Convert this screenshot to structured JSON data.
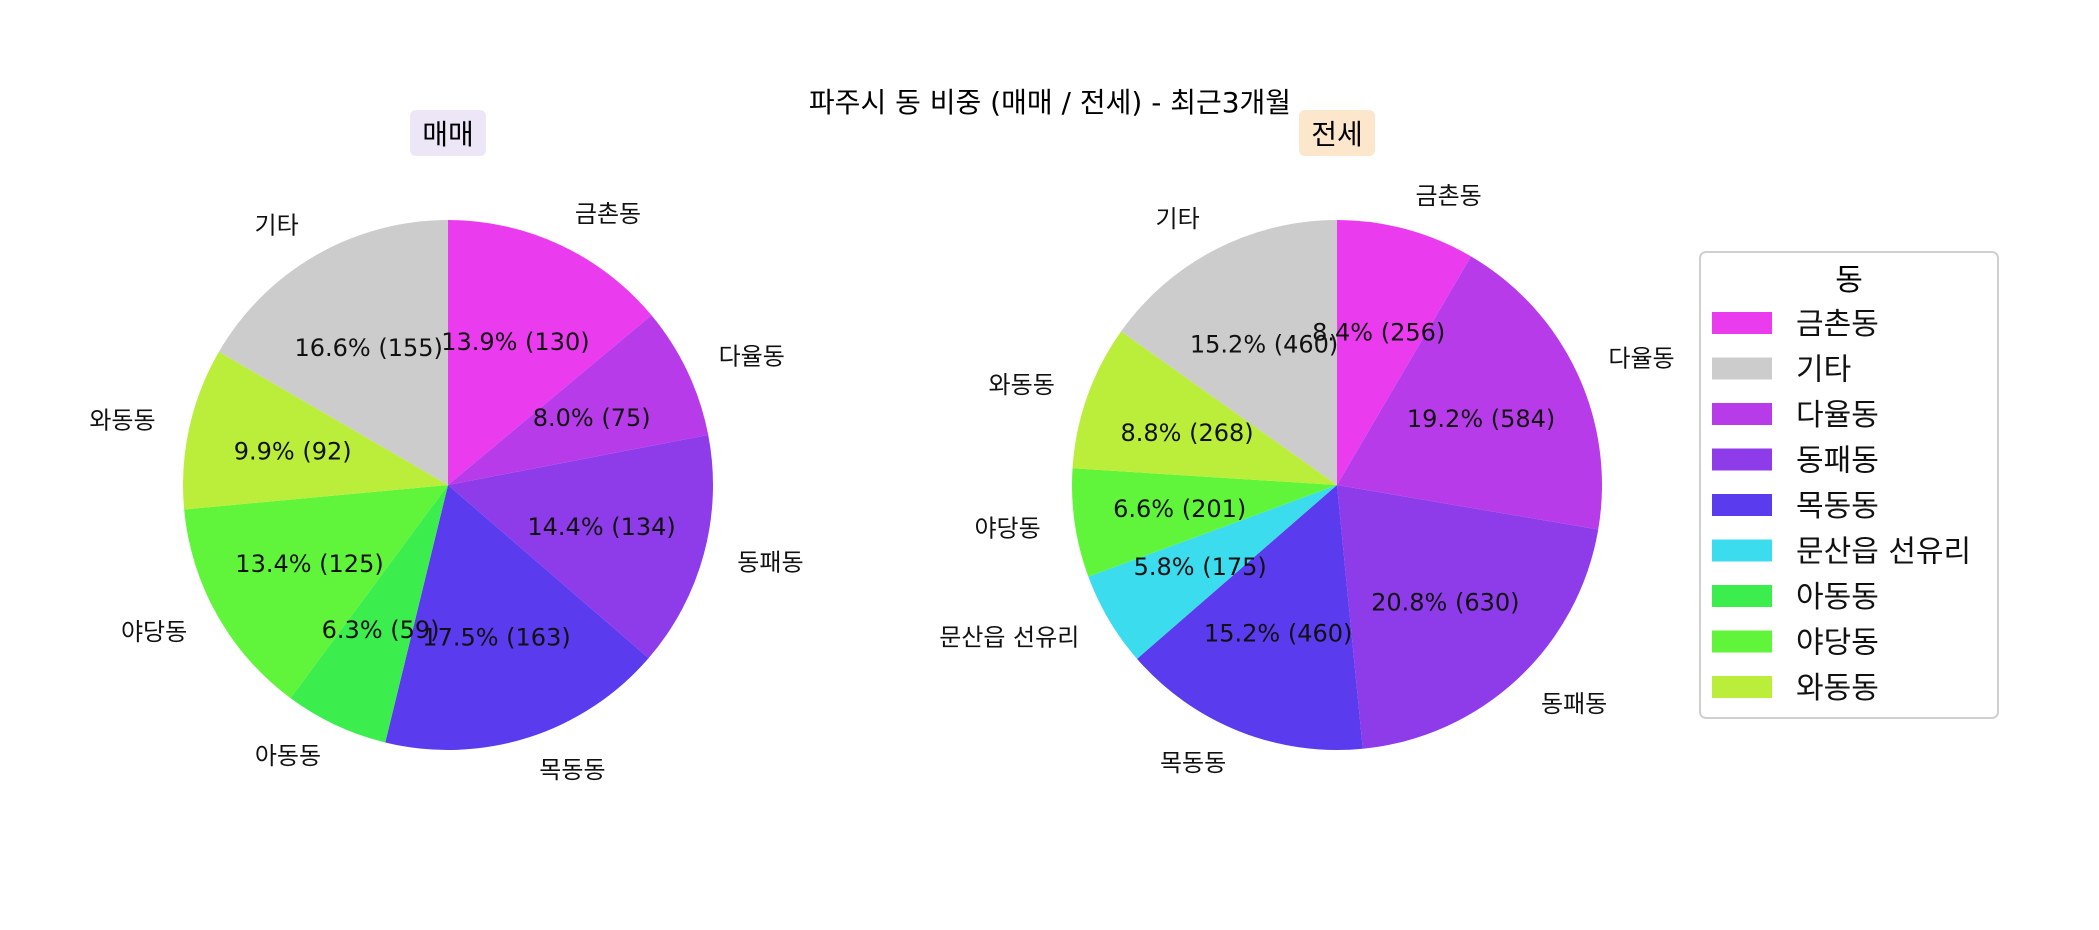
{
  "chart_data": {
    "title": "파주시 동 비중 (매매 / 전세) - 최근3개월",
    "legend": {
      "title": "동",
      "placement": "right",
      "entries": [
        {
          "name": "금촌동",
          "color": "#EA3BEE"
        },
        {
          "name": "기타",
          "color": "#CCCCCC"
        },
        {
          "name": "다율동",
          "color": "#B83BEA"
        },
        {
          "name": "동패동",
          "color": "#8E3BEA"
        },
        {
          "name": "목동동",
          "color": "#5A3BEE"
        },
        {
          "name": "문산읍 선유리",
          "color": "#3BDCEE"
        },
        {
          "name": "아동동",
          "color": "#3BEE4E"
        },
        {
          "name": "야당동",
          "color": "#60F53B"
        },
        {
          "name": "와동동",
          "color": "#BAEE3B"
        }
      ]
    },
    "charts": [
      {
        "type": "pie",
        "title": "매매",
        "title_bg": "#ECE6F6",
        "slices": [
          {
            "label": "금촌동",
            "value": 130,
            "pct_label": "13.9% (130)",
            "color": "#EA3BEE"
          },
          {
            "label": "다율동",
            "value": 75,
            "pct_label": "8.0% (75)",
            "color": "#B83BEA"
          },
          {
            "label": "동패동",
            "value": 134,
            "pct_label": "14.4% (134)",
            "color": "#8E3BEA"
          },
          {
            "label": "목동동",
            "value": 163,
            "pct_label": "17.5% (163)",
            "color": "#5A3BEE"
          },
          {
            "label": "아동동",
            "value": 59,
            "pct_label": "6.3% (59)",
            "color": "#3BEE4E"
          },
          {
            "label": "야당동",
            "value": 125,
            "pct_label": "13.4% (125)",
            "color": "#60F53B"
          },
          {
            "label": "와동동",
            "value": 92,
            "pct_label": "9.9% (92)",
            "color": "#BAEE3B"
          },
          {
            "label": "기타",
            "value": 155,
            "pct_label": "16.6% (155)",
            "color": "#CCCCCC"
          }
        ]
      },
      {
        "type": "pie",
        "title": "전세",
        "title_bg": "#FCE6CC",
        "slices": [
          {
            "label": "금촌동",
            "value": 256,
            "pct_label": "8.4% (256)",
            "color": "#EA3BEE"
          },
          {
            "label": "다율동",
            "value": 584,
            "pct_label": "19.2% (584)",
            "color": "#B83BEA"
          },
          {
            "label": "동패동",
            "value": 630,
            "pct_label": "20.8% (630)",
            "color": "#8E3BEA"
          },
          {
            "label": "목동동",
            "value": 460,
            "pct_label": "15.2% (460)",
            "color": "#5A3BEE"
          },
          {
            "label": "문산읍 선유리",
            "value": 175,
            "pct_label": "5.8% (175)",
            "color": "#3BDCEE"
          },
          {
            "label": "야당동",
            "value": 201,
            "pct_label": "6.6% (201)",
            "color": "#60F53B"
          },
          {
            "label": "와동동",
            "value": 268,
            "pct_label": "8.8% (268)",
            "color": "#BAEE3B"
          },
          {
            "label": "기타",
            "value": 460,
            "pct_label": "15.2% (460)",
            "color": "#CCCCCC"
          }
        ]
      }
    ]
  }
}
